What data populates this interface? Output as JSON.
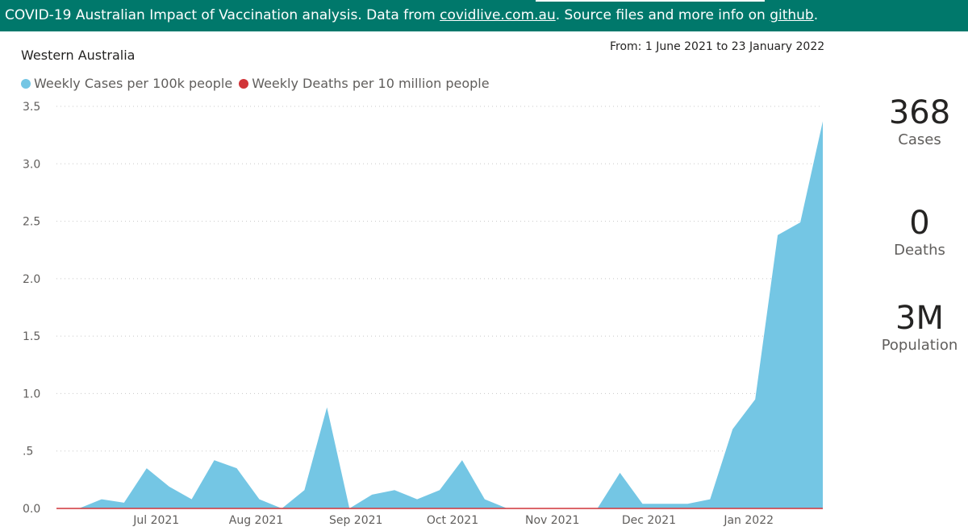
{
  "banner": {
    "prefix": "COVID-19 Australian Impact of Vaccination analysis. Data from ",
    "link1": "covidlive.com.au",
    "middle": ". Source files and more info on ",
    "link2": "github",
    "suffix": "."
  },
  "region": "Western Australia",
  "date_range": "From: 1 June 2021 to 23 January 2022",
  "legend": [
    {
      "label": "Weekly Cases per 100k people",
      "color": "#74c6e4"
    },
    {
      "label": "Weekly Deaths per 10 million people",
      "color": "#d13438"
    }
  ],
  "kpis": [
    {
      "value": "368",
      "label": "Cases"
    },
    {
      "value": "0",
      "label": "Deaths"
    },
    {
      "value": "3M",
      "label": "Population"
    }
  ],
  "chart_data": {
    "type": "area",
    "ylim": [
      0,
      3.5
    ],
    "yticks": [
      {
        "v": 0,
        "label": "0.0"
      },
      {
        "v": 0.5,
        "label": ".5"
      },
      {
        "v": 1,
        "label": "1.0"
      },
      {
        "v": 1.5,
        "label": "1.5"
      },
      {
        "v": 2,
        "label": "2.0"
      },
      {
        "v": 2.5,
        "label": "2.5"
      },
      {
        "v": 3,
        "label": "3.0"
      },
      {
        "v": 3.5,
        "label": "3.5"
      }
    ],
    "xlim": [
      "2021-05-31",
      "2022-01-24"
    ],
    "xticks": [
      {
        "date": "2021-07-01",
        "label": "Jul 2021"
      },
      {
        "date": "2021-08-01",
        "label": "Aug 2021"
      },
      {
        "date": "2021-09-01",
        "label": "Sep 2021"
      },
      {
        "date": "2021-10-01",
        "label": "Oct 2021"
      },
      {
        "date": "2021-11-01",
        "label": "Nov 2021"
      },
      {
        "date": "2021-12-01",
        "label": "Dec 2021"
      },
      {
        "date": "2022-01-01",
        "label": "Jan 2022"
      }
    ],
    "grid": true,
    "legend_position": "top-left",
    "series": [
      {
        "name": "Weekly Cases per 100k people",
        "color": "#74c6e4",
        "points": [
          [
            "2021-06-07",
            0
          ],
          [
            "2021-06-14",
            0.08
          ],
          [
            "2021-06-21",
            0.05
          ],
          [
            "2021-06-28",
            0.35
          ],
          [
            "2021-07-05",
            0.19
          ],
          [
            "2021-07-12",
            0.08
          ],
          [
            "2021-07-19",
            0.42
          ],
          [
            "2021-07-26",
            0.35
          ],
          [
            "2021-08-02",
            0.08
          ],
          [
            "2021-08-09",
            0
          ],
          [
            "2021-08-16",
            0.16
          ],
          [
            "2021-08-23",
            0.88
          ],
          [
            "2021-08-30",
            0
          ],
          [
            "2021-09-06",
            0.12
          ],
          [
            "2021-09-13",
            0.16
          ],
          [
            "2021-09-20",
            0.08
          ],
          [
            "2021-09-27",
            0.16
          ],
          [
            "2021-10-04",
            0.42
          ],
          [
            "2021-10-11",
            0.08
          ],
          [
            "2021-10-18",
            0
          ],
          [
            "2021-10-25",
            0
          ],
          [
            "2021-11-01",
            0
          ],
          [
            "2021-11-08",
            0
          ],
          [
            "2021-11-15",
            0
          ],
          [
            "2021-11-22",
            0.31
          ],
          [
            "2021-11-29",
            0.04
          ],
          [
            "2021-12-06",
            0.04
          ],
          [
            "2021-12-13",
            0.04
          ],
          [
            "2021-12-20",
            0.08
          ],
          [
            "2021-12-27",
            0.69
          ],
          [
            "2022-01-03",
            0.95
          ],
          [
            "2022-01-10",
            2.38
          ],
          [
            "2022-01-17",
            2.49
          ],
          [
            "2022-01-24",
            3.37
          ]
        ]
      },
      {
        "name": "Weekly Deaths per 10 million people",
        "color": "#d13438",
        "points": [
          [
            "2021-06-07",
            0
          ],
          [
            "2022-01-24",
            0
          ]
        ]
      }
    ]
  }
}
